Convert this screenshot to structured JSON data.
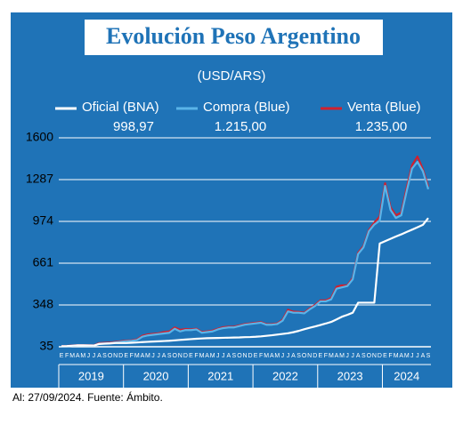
{
  "chart_data": {
    "type": "line",
    "title": "Evolución Peso Argentino",
    "subtitle": "(USD/ARS)",
    "footer": "Al: 27/09/2024. Fuente: Ámbito.",
    "categories": [
      "E",
      "F",
      "M",
      "A",
      "M",
      "J",
      "J",
      "A",
      "S",
      "O",
      "N",
      "D",
      "E",
      "F",
      "M",
      "A",
      "M",
      "J",
      "J",
      "A",
      "S",
      "O",
      "N",
      "D",
      "E",
      "F",
      "M",
      "A",
      "M",
      "J",
      "J",
      "A",
      "S",
      "O",
      "N",
      "D",
      "E",
      "F",
      "M",
      "A",
      "M",
      "J",
      "J",
      "A",
      "S",
      "O",
      "N",
      "D",
      "E",
      "F",
      "M",
      "A",
      "M",
      "J",
      "J",
      "A",
      "S",
      "O",
      "N",
      "D",
      "E",
      "F",
      "M",
      "A",
      "M",
      "J",
      "J",
      "A",
      "S"
    ],
    "year_groups": [
      "2019",
      "2020",
      "2021",
      "2022",
      "2023",
      "2024"
    ],
    "series": [
      {
        "name": "Venta (Blue)",
        "color": "#d0202e",
        "latest": {
          "value": 1235,
          "label": "1.235,00"
        },
        "values": [
          39,
          41,
          44,
          47,
          47,
          46,
          45,
          62,
          64,
          66,
          71,
          76,
          81,
          83,
          90,
          118,
          128,
          132,
          136,
          145,
          150,
          180,
          162,
          168,
          165,
          170,
          146,
          150,
          156,
          170,
          182,
          185,
          186,
          195,
          205,
          210,
          215,
          220,
          205,
          204,
          210,
          238,
          312,
          298,
          296,
          290,
          322,
          348,
          382,
          382,
          400,
          485,
          495,
          495,
          550,
          740,
          790,
          910,
          965,
          1010,
          1260,
          1080,
          1020,
          1040,
          1225,
          1395,
          1460,
          1365,
          1235
        ]
      },
      {
        "name": "Compra (Blue)",
        "color": "#5ab4e8",
        "latest": {
          "value": 1215,
          "label": "1.215,00"
        },
        "values": [
          37,
          39,
          42,
          45,
          45,
          44,
          43,
          58,
          60,
          62,
          67,
          72,
          77,
          79,
          85,
          110,
          120,
          125,
          130,
          135,
          140,
          170,
          150,
          160,
          160,
          165,
          140,
          145,
          150,
          165,
          175,
          180,
          180,
          190,
          200,
          205,
          210,
          215,
          200,
          200,
          205,
          230,
          300,
          290,
          290,
          285,
          315,
          340,
          375,
          375,
          390,
          470,
          480,
          490,
          540,
          730,
          780,
          900,
          950,
          980,
          1240,
          1060,
          1000,
          1020,
          1200,
          1370,
          1420,
          1350,
          1215
        ]
      },
      {
        "name": "Oficial (BNA)",
        "color": "#ffffff",
        "latest": {
          "value": 998.97,
          "label": "998,97"
        },
        "values": [
          39,
          40,
          43,
          46,
          46,
          45,
          44,
          56,
          58,
          60,
          63,
          63,
          63,
          65,
          67,
          70,
          72,
          74,
          76,
          78,
          80,
          83,
          86,
          89,
          92,
          95,
          97,
          99,
          100,
          101,
          102,
          103,
          104,
          105,
          107,
          108,
          110,
          113,
          117,
          121,
          126,
          131,
          136,
          144,
          154,
          166,
          177,
          187,
          198,
          209,
          221,
          240,
          260,
          274,
          290,
          365,
          365,
          365,
          365,
          808,
          826,
          843,
          861,
          877,
          895,
          912,
          930,
          948,
          998.97
        ]
      }
    ],
    "legend_order": [
      2,
      1,
      0
    ],
    "ylim": [
      35,
      1600
    ],
    "yticks": [
      35,
      348,
      661,
      974,
      1287,
      1600
    ],
    "grid": true
  }
}
